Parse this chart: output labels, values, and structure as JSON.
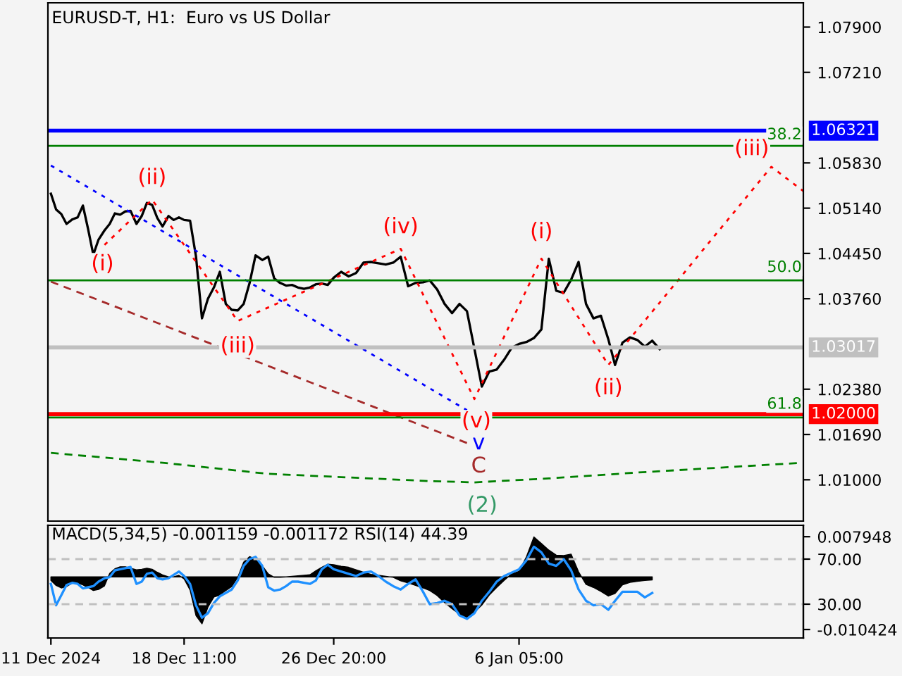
{
  "chart_data": [
    {
      "type": "line",
      "title": "EURUSD-T, H1:  Euro vs US Dollar",
      "xlim": [
        "2024-12-10T20:00",
        "2025-01-22T03:00"
      ],
      "ylim": [
        1.0037,
        1.0827
      ],
      "tick_labels": "y",
      "yticks": [
        {
          "value": 1.079,
          "label": "1.07900"
        },
        {
          "value": 1.0721,
          "label": "1.07210"
        },
        {
          "value": 1.0583,
          "label": "1.05830"
        },
        {
          "value": 1.0514,
          "label": "1.05140"
        },
        {
          "value": 1.0445,
          "label": "1.04450"
        },
        {
          "value": 1.0376,
          "label": "1.03760"
        },
        {
          "value": 1.0238,
          "label": "1.02380"
        },
        {
          "value": 1.0169,
          "label": "1.01690"
        },
        {
          "value": 1.01,
          "label": "1.01000"
        }
      ],
      "x": [
        "2024-12-11T00:00",
        "2024-12-11T07:00",
        "2024-12-11T14:00",
        "2024-12-11T21:00",
        "2024-12-12T05:00",
        "2024-12-12T12:00",
        "2024-12-12T19:00",
        "2024-12-13T02:00",
        "2024-12-13T09:00",
        "2024-12-13T16:00",
        "2024-12-14T00:00",
        "2024-12-14T07:00",
        "2024-12-14T14:00",
        "2024-12-14T21:00",
        "2024-12-15T04:00",
        "2024-12-15T11:00",
        "2024-12-15T19:00",
        "2024-12-16T02:00",
        "2024-12-16T09:00",
        "2024-12-16T16:00",
        "2024-12-16T23:00",
        "2024-12-17T06:00",
        "2024-12-17T14:00",
        "2024-12-17T21:00",
        "2024-12-18T04:00",
        "2024-12-18T11:00",
        "2024-12-18T19:00",
        "2024-12-19T03:00",
        "2024-12-19T11:00",
        "2024-12-19T19:00",
        "2024-12-20T03:00",
        "2024-12-20T11:00",
        "2024-12-20T19:00",
        "2024-12-21T03:00",
        "2024-12-21T11:00",
        "2024-12-21T19:00",
        "2024-12-22T03:00",
        "2024-12-22T11:00",
        "2024-12-22T20:00",
        "2024-12-23T04:00",
        "2024-12-23T12:00",
        "2024-12-23T20:00",
        "2024-12-24T04:00",
        "2024-12-24T12:00",
        "2024-12-24T20:00",
        "2024-12-25T04:00",
        "2024-12-25T12:00",
        "2024-12-25T20:00",
        "2024-12-26T04:00",
        "2024-12-26T12:00",
        "2024-12-26T20:00",
        "2024-12-27T06:00",
        "2024-12-27T16:00",
        "2024-12-28T02:00",
        "2024-12-28T12:00",
        "2024-12-28T22:00",
        "2024-12-29T08:00",
        "2024-12-29T18:00",
        "2024-12-30T04:00",
        "2024-12-30T14:00",
        "2024-12-31T00:00",
        "2024-12-31T10:00",
        "2024-12-31T20:00",
        "2025-01-01T05:00",
        "2025-01-01T15:00",
        "2025-01-02T01:00",
        "2025-01-02T11:00",
        "2025-01-02T21:00",
        "2025-01-03T07:00",
        "2025-01-03T17:00",
        "2025-01-04T03:00",
        "2025-01-04T13:00",
        "2025-01-04T23:00",
        "2025-01-05T09:00",
        "2025-01-05T19:00",
        "2025-01-06T05:00",
        "2025-01-06T15:00",
        "2025-01-07T01:00",
        "2025-01-07T11:00",
        "2025-01-07T21:00",
        "2025-01-08T07:00",
        "2025-01-08T17:00",
        "2025-01-09T03:00",
        "2025-01-09T13:00",
        "2025-01-09T23:00",
        "2025-01-10T09:00",
        "2025-01-10T19:00",
        "2025-01-11T05:00",
        "2025-01-11T14:00",
        "2025-01-12T00:00",
        "2025-01-12T10:00",
        "2025-01-12T20:00",
        "2025-01-13T06:00",
        "2025-01-13T16:00",
        "2025-01-14T02:00"
      ],
      "series": [
        {
          "color": "#000000",
          "line_style": "solid",
          "values": [
            1.0536,
            1.0512,
            1.0505,
            1.049,
            1.0497,
            1.05,
            1.0518,
            1.0482,
            1.0443,
            1.0466,
            1.048,
            1.049,
            1.0506,
            1.0504,
            1.0509,
            1.051,
            1.049,
            1.0502,
            1.0522,
            1.0519,
            1.0499,
            1.0486,
            1.0502,
            1.0496,
            1.05,
            1.0496,
            1.0495,
            1.044,
            1.0346,
            1.0376,
            1.0393,
            1.0417,
            1.0368,
            1.0359,
            1.0358,
            1.0368,
            1.04,
            1.0442,
            1.0435,
            1.044,
            1.0407,
            1.04,
            1.0396,
            1.0397,
            1.0393,
            1.0391,
            1.0393,
            1.0398,
            1.0399,
            1.0397,
            1.0408,
            1.0417,
            1.041,
            1.0415,
            1.0431,
            1.0432,
            1.043,
            1.0428,
            1.0431,
            1.044,
            1.0395,
            1.04,
            1.0401,
            1.0404,
            1.039,
            1.0368,
            1.0354,
            1.0368,
            1.0357,
            1.03,
            1.0242,
            1.0265,
            1.0268,
            1.0283,
            1.0301,
            1.0307,
            1.031,
            1.0316,
            1.0329,
            1.0437,
            1.0388,
            1.0385,
            1.0405,
            1.0432,
            1.0368,
            1.0346,
            1.035,
            1.0314,
            1.0275,
            1.0309,
            1.0317,
            1.0313,
            1.0303,
            1.0312,
            1.0299
          ]
        },
        {
          "color": "#ff0000",
          "line_style": "dotted",
          "x": [
            "2024-12-14T00:00",
            "2024-12-16T16:00",
            "2024-12-21T11:00",
            "2024-12-30T14:00",
            "2025-01-03T17:00",
            "2025-01-07T11:00",
            "2025-01-11T05:00",
            "2025-01-20T08:00",
            "2025-01-22T03:00"
          ],
          "values": [
            1.0458,
            1.0527,
            1.0342,
            1.0452,
            1.0223,
            1.0437,
            1.0275,
            1.0577,
            1.054
          ]
        },
        {
          "color": "#0000ff",
          "line_style": "dotted",
          "x": [
            "2024-12-11T00:00",
            "2025-01-03T07:00"
          ],
          "values": [
            1.0579,
            1.0206
          ]
        },
        {
          "color": "#a52a2a",
          "line_style": "dashed",
          "x": [
            "2024-12-11T00:00",
            "2025-01-03T07:00"
          ],
          "values": [
            1.0402,
            1.0156
          ]
        },
        {
          "color": "#008000",
          "line_style": "dashed",
          "x": [
            "2024-12-11T00:00",
            "2024-12-17T06:00",
            "2024-12-23T04:00",
            "2025-01-01T05:00",
            "2025-01-03T17:00",
            "2025-01-07T21:00",
            "2025-01-12T20:00",
            "2025-01-22T03:00"
          ],
          "values": [
            1.0141,
            1.0126,
            1.0109,
            1.0098,
            1.0096,
            1.0102,
            1.0111,
            1.0126
          ]
        }
      ],
      "ref_lines": [
        {
          "axis": "y",
          "value": 1.0609,
          "color": "#008000"
        },
        {
          "axis": "y",
          "value": 1.0404,
          "color": "#008000"
        },
        {
          "axis": "y",
          "value": 1.0195,
          "color": "#008000"
        },
        {
          "axis": "y",
          "value": 1.03017,
          "label": "1.03017",
          "color": "#c0c0c0"
        },
        {
          "axis": "y",
          "value": 1.06321,
          "label": "1.06321",
          "color": "#0000ff"
        },
        {
          "axis": "y",
          "value": 1.02,
          "label": "1.02000",
          "color": "#ff0000"
        }
      ],
      "annotations": [
        {
          "text": "(i)",
          "x": "2024-12-14T00:00",
          "y": 1.0458
        },
        {
          "text": "(ii)",
          "x": "2024-12-16T16:00",
          "y": 1.0527
        },
        {
          "text": "(iii)",
          "x": "2024-12-21T11:00",
          "y": 1.0342
        },
        {
          "text": "(iv)",
          "x": "2024-12-30T14:00",
          "y": 1.0452
        },
        {
          "text": "(v)",
          "x": "2025-01-03T17:00",
          "y": 1.0223
        },
        {
          "text": "(i)",
          "x": "2025-01-07T11:00",
          "y": 1.0437
        },
        {
          "text": "(ii)",
          "x": "2025-01-11T05:00",
          "y": 1.0275
        },
        {
          "text": "(iii)",
          "x": "2025-01-20T08:00",
          "y": 1.0577
        },
        {
          "text": "v",
          "x": "2025-01-03T07:00",
          "y": 1.0206
        },
        {
          "text": "C",
          "x": "2025-01-03T07:00",
          "y": 1.0156
        },
        {
          "text": "(2)",
          "x": "2025-01-03T17:00",
          "y": 1.0096
        },
        "38.2",
        "50.0",
        "61.8"
      ]
    },
    {
      "type": "area",
      "title": "MACD(5,34,5) -0.001159 -0.001172 RSI(14) 44.39",
      "xlim": [
        "2024-12-10T20:00",
        "2025-01-22T03:00"
      ],
      "ylim": [
        -0.0121,
        0.0102
      ],
      "y2lim": [
        0,
        100
      ],
      "xticks": [
        {
          "value": "2024-12-11T00:00",
          "label": "11 Dec 2024"
        },
        {
          "value": "2024-12-18T11:00",
          "label": "18 Dec 11:00"
        },
        {
          "value": "2024-12-26T20:00",
          "label": "26 Dec 20:00"
        },
        {
          "value": "2025-01-06T05:00",
          "label": "6 Jan 05:00"
        }
      ],
      "yticks": [
        0.007948,
        -0.010424
      ],
      "y2ticks": [
        {
          "value": 70,
          "label": "70.00"
        },
        {
          "value": 30,
          "label": "30.00"
        }
      ],
      "x": [
        "2024-12-11T00:00",
        "2024-12-11T07:00",
        "2024-12-11T14:00",
        "2024-12-11T21:00",
        "2024-12-12T05:00",
        "2024-12-12T12:00",
        "2024-12-12T19:00",
        "2024-12-13T02:00",
        "2024-12-13T09:00",
        "2024-12-13T16:00",
        "2024-12-14T00:00",
        "2024-12-14T07:00",
        "2024-12-14T14:00",
        "2024-12-14T21:00",
        "2024-12-15T04:00",
        "2024-12-15T11:00",
        "2024-12-15T19:00",
        "2024-12-16T02:00",
        "2024-12-16T09:00",
        "2024-12-16T16:00",
        "2024-12-16T23:00",
        "2024-12-17T06:00",
        "2024-12-17T14:00",
        "2024-12-17T21:00",
        "2024-12-18T04:00",
        "2024-12-18T11:00",
        "2024-12-18T19:00",
        "2024-12-19T03:00",
        "2024-12-19T11:00",
        "2024-12-19T19:00",
        "2024-12-20T03:00",
        "2024-12-20T11:00",
        "2024-12-20T19:00",
        "2024-12-21T03:00",
        "2024-12-21T11:00",
        "2024-12-21T19:00",
        "2024-12-22T03:00",
        "2024-12-22T11:00",
        "2024-12-22T20:00",
        "2024-12-23T04:00",
        "2024-12-23T12:00",
        "2024-12-23T20:00",
        "2024-12-24T04:00",
        "2024-12-24T12:00",
        "2024-12-24T20:00",
        "2024-12-25T04:00",
        "2024-12-25T12:00",
        "2024-12-25T20:00",
        "2024-12-26T04:00",
        "2024-12-26T12:00",
        "2024-12-26T20:00",
        "2024-12-27T06:00",
        "2024-12-27T16:00",
        "2024-12-28T02:00",
        "2024-12-28T12:00",
        "2024-12-28T22:00",
        "2024-12-29T08:00",
        "2024-12-29T18:00",
        "2024-12-30T04:00",
        "2024-12-30T14:00",
        "2024-12-31T00:00",
        "2024-12-31T10:00",
        "2024-12-31T20:00",
        "2025-01-01T05:00",
        "2025-01-01T15:00",
        "2025-01-02T01:00",
        "2025-01-02T11:00",
        "2025-01-02T21:00",
        "2025-01-03T07:00",
        "2025-01-03T17:00",
        "2025-01-04T03:00",
        "2025-01-04T13:00",
        "2025-01-04T23:00",
        "2025-01-05T09:00",
        "2025-01-05T19:00",
        "2025-01-06T05:00",
        "2025-01-06T15:00",
        "2025-01-07T01:00",
        "2025-01-07T11:00",
        "2025-01-07T21:00",
        "2025-01-08T07:00",
        "2025-01-08T17:00",
        "2025-01-09T03:00",
        "2025-01-09T13:00",
        "2025-01-09T23:00",
        "2025-01-10T09:00",
        "2025-01-10T19:00",
        "2025-01-11T05:00",
        "2025-01-11T14:00",
        "2025-01-12T00:00",
        "2025-01-12T10:00",
        "2025-01-12T20:00",
        "2025-01-13T06:00",
        "2025-01-13T16:00"
      ],
      "series": [
        {
          "color": "#000000",
          "values": [
            -0.0007,
            -0.0017,
            -0.0022,
            -0.0019,
            -0.0012,
            -0.0012,
            -0.0016,
            -0.0021,
            -0.0027,
            -0.0025,
            -0.0018,
            0.0007,
            0.0016,
            0.002,
            0.002,
            0.0017,
            0.0014,
            0.0015,
            0.0017,
            0.0015,
            0.0009,
            0.0004,
            0.0,
            0.0,
            0.0003,
            -0.0004,
            -0.0026,
            -0.0077,
            -0.0093,
            -0.006,
            -0.004,
            -0.0036,
            -0.0027,
            -0.0019,
            -0.0001,
            0.0029,
            0.004,
            0.0035,
            0.0022,
            0.0006,
            -0.0001,
            -0.0001,
            0.0,
            0.0001,
            0.0002,
            0.0003,
            0.0004,
            0.0012,
            0.0019,
            0.0025,
            0.0024,
            0.0021,
            0.0019,
            0.0014,
            0.0009,
            0.0005,
            0.0003,
            0.0001,
            -0.0001,
            -0.0008,
            -0.0012,
            -0.0017,
            -0.0022,
            -0.0027,
            -0.0037,
            -0.0051,
            -0.0063,
            -0.0074,
            -0.0083,
            -0.007,
            -0.0056,
            -0.0036,
            -0.0021,
            -0.0007,
            0.0006,
            0.0011,
            0.004,
            0.0079,
            0.0066,
            0.0053,
            0.0043,
            0.0042,
            0.0045,
            0.001,
            -0.0015,
            -0.0021,
            -0.0029,
            -0.0038,
            -0.0033,
            -0.0016,
            -0.0011,
            -0.0009,
            -0.0007,
            -0.0006
          ]
        },
        {
          "type": "line",
          "color": "#1e90ff",
          "axis": "y2",
          "line_style": "solid",
          "values": [
            48,
            29,
            38,
            47,
            49,
            48,
            44,
            45,
            46,
            50,
            53,
            54,
            60,
            61,
            62,
            63,
            48,
            50,
            57,
            58,
            53,
            52,
            53,
            56,
            59,
            55,
            48,
            29,
            18,
            22,
            31,
            37,
            40,
            43,
            51,
            64,
            70,
            72,
            64,
            45,
            42,
            43,
            46,
            50,
            50,
            49,
            48,
            51,
            61,
            65,
            61,
            59,
            57,
            55,
            58,
            59,
            55,
            50,
            46,
            43,
            48,
            52,
            41,
            30,
            31,
            33,
            30,
            20,
            17,
            22,
            33,
            41,
            50,
            55,
            58,
            61,
            69,
            81,
            76,
            66,
            64,
            70,
            60,
            43,
            33,
            29,
            30,
            25,
            33,
            41,
            41,
            41,
            36,
            40
          ]
        }
      ],
      "ref_lines": [
        {
          "axis": "y2",
          "value": 70,
          "color": "#c0c0c0",
          "line_style": "dashed"
        },
        {
          "axis": "y2",
          "value": 30,
          "color": "#c0c0c0",
          "line_style": "dashed"
        }
      ]
    }
  ]
}
